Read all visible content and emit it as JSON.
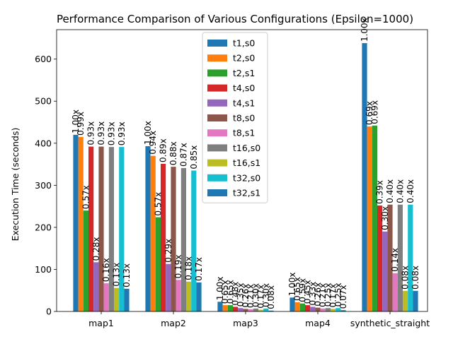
{
  "chart_data": {
    "type": "bar",
    "title": "Performance Comparison of Various Configurations (Epsilon=1000)",
    "xlabel": "",
    "ylabel": "Execution Time (seconds)",
    "ylim": [
      0,
      670
    ],
    "yticks": [
      0,
      100,
      200,
      300,
      400,
      500,
      600
    ],
    "grid": false,
    "legend_position": "top-center",
    "categories": [
      "map1",
      "map2",
      "map3",
      "map4",
      "synthetic_straight"
    ],
    "series": [
      {
        "name": "t1,s0",
        "color": "#1f77b4",
        "values": [
          420,
          393,
          23,
          33,
          638
        ],
        "labels": [
          "1.00x",
          "1.00x",
          "1.00x",
          "1.00x",
          "1.00x"
        ]
      },
      {
        "name": "t2,s0",
        "color": "#ff7f0e",
        "values": [
          415,
          370,
          15,
          22,
          440
        ],
        "labels": [
          "0.99x",
          "0.94x",
          "0.65x",
          "0.65x",
          "0.69x"
        ]
      },
      {
        "name": "t2,s1",
        "color": "#2ca02c",
        "values": [
          240,
          224,
          15,
          19,
          442
        ],
        "labels": [
          "0.57x",
          "0.57x",
          "0.65x",
          "0.59x",
          "0.69x"
        ]
      },
      {
        "name": "t4,s0",
        "color": "#d62728",
        "values": [
          392,
          351,
          11,
          15,
          252
        ],
        "labels": [
          "0.93x",
          "0.89x",
          "0.48x",
          "0.45x",
          "0.39x"
        ]
      },
      {
        "name": "t4,s1",
        "color": "#9467bd",
        "values": [
          117,
          113,
          8,
          11,
          190
        ],
        "labels": [
          "0.28x",
          "0.29x",
          "0.35x",
          "0.33x",
          "0.30x"
        ]
      },
      {
        "name": "t8,s0",
        "color": "#8c564b",
        "values": [
          392,
          344,
          6,
          9,
          254
        ],
        "labels": [
          "0.93x",
          "0.88x",
          "0.26x",
          "0.26x",
          "0.40x"
        ]
      },
      {
        "name": "t8,s1",
        "color": "#e377c2",
        "values": [
          67,
          75,
          5,
          7,
          91
        ],
        "labels": [
          "0.16x",
          "0.19x",
          "0.21x",
          "0.21x",
          "0.14x"
        ]
      },
      {
        "name": "t16,s0",
        "color": "#7f7f7f",
        "values": [
          391,
          341,
          7,
          8,
          254
        ],
        "labels": [
          "0.93x",
          "0.87x",
          "0.30x",
          "0.25x",
          "0.40x"
        ]
      },
      {
        "name": "t16,s1",
        "color": "#bcbd22",
        "values": [
          56,
          71,
          4,
          6,
          49
        ],
        "labels": [
          "0.13x",
          "0.18x",
          "0.17x",
          "0.17x",
          "0.08x"
        ]
      },
      {
        "name": "t32,s0",
        "color": "#17becf",
        "values": [
          391,
          335,
          7,
          8,
          254
        ],
        "labels": [
          "0.93x",
          "0.85x",
          "0.30x",
          "0.25x",
          "0.40x"
        ]
      },
      {
        "name": "t32,s1",
        "color": "#1f77b4",
        "values": [
          54,
          69,
          2,
          3,
          49
        ],
        "labels": [
          "0.13x",
          "0.17x",
          "0.08x",
          "0.07x",
          "0.08x"
        ]
      }
    ]
  }
}
